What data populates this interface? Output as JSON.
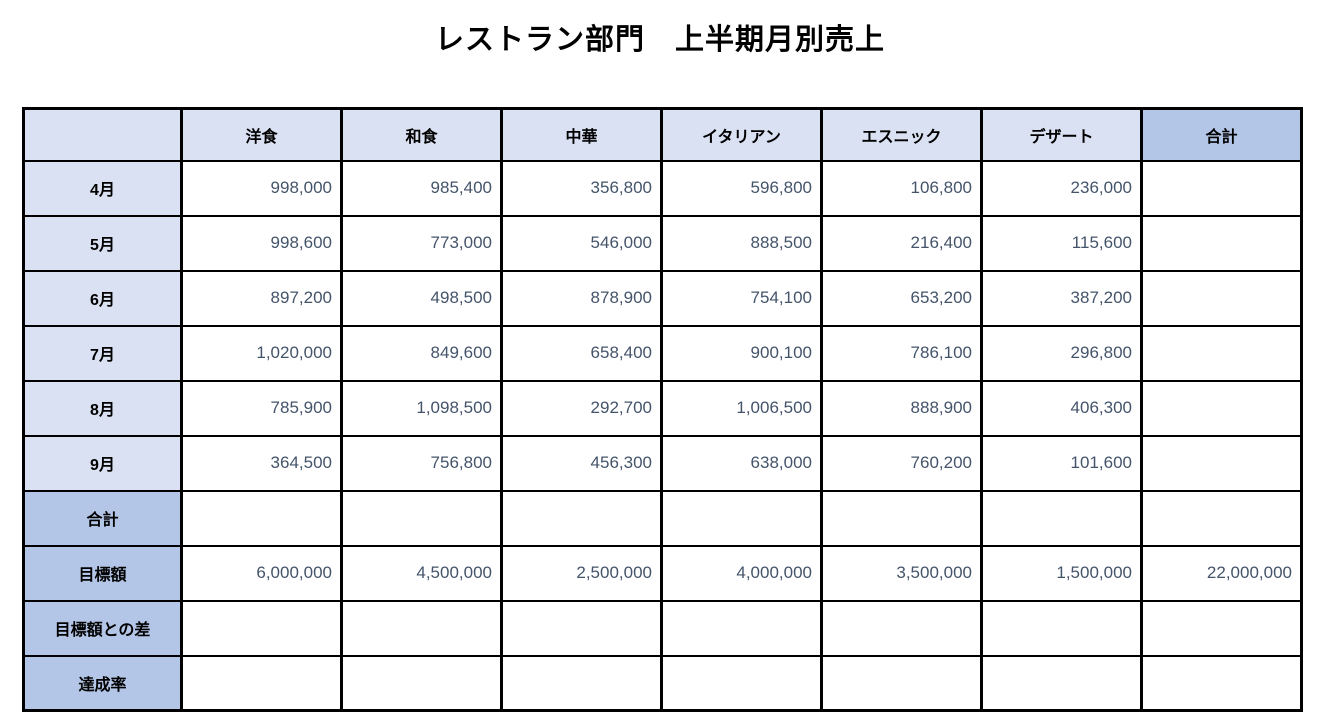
{
  "page": {
    "title": "レストラン部門　上半期月別売上"
  },
  "colors": {
    "header_light": "#D9E1F2",
    "header_dark": "#B4C6E7",
    "border": "#000000",
    "number_text": "#44546A",
    "label_text": "#000000",
    "background": "#FFFFFF"
  },
  "table": {
    "columns": [
      "",
      "洋食",
      "和食",
      "中華",
      "イタリアン",
      "エスニック",
      "デザート",
      "合計"
    ],
    "last_column_dark": true,
    "rows": [
      {
        "label": "4月",
        "type": "month",
        "values": [
          "998,000",
          "985,400",
          "356,800",
          "596,800",
          "106,800",
          "236,000",
          ""
        ]
      },
      {
        "label": "5月",
        "type": "month",
        "values": [
          "998,600",
          "773,000",
          "546,000",
          "888,500",
          "216,400",
          "115,600",
          ""
        ]
      },
      {
        "label": "6月",
        "type": "month",
        "values": [
          "897,200",
          "498,500",
          "878,900",
          "754,100",
          "653,200",
          "387,200",
          ""
        ]
      },
      {
        "label": "7月",
        "type": "month",
        "values": [
          "1,020,000",
          "849,600",
          "658,400",
          "900,100",
          "786,100",
          "296,800",
          ""
        ]
      },
      {
        "label": "8月",
        "type": "month",
        "values": [
          "785,900",
          "1,098,500",
          "292,700",
          "1,006,500",
          "888,900",
          "406,300",
          ""
        ]
      },
      {
        "label": "9月",
        "type": "month",
        "values": [
          "364,500",
          "756,800",
          "456,300",
          "638,000",
          "760,200",
          "101,600",
          ""
        ]
      },
      {
        "label": "合計",
        "type": "summary",
        "values": [
          "",
          "",
          "",
          "",
          "",
          "",
          ""
        ]
      },
      {
        "label": "目標額",
        "type": "summary",
        "values": [
          "6,000,000",
          "4,500,000",
          "2,500,000",
          "4,000,000",
          "3,500,000",
          "1,500,000",
          "22,000,000"
        ]
      },
      {
        "label": "目標額との差",
        "type": "summary",
        "values": [
          "",
          "",
          "",
          "",
          "",
          "",
          ""
        ]
      },
      {
        "label": "達成率",
        "type": "summary",
        "values": [
          "",
          "",
          "",
          "",
          "",
          "",
          ""
        ]
      }
    ]
  }
}
